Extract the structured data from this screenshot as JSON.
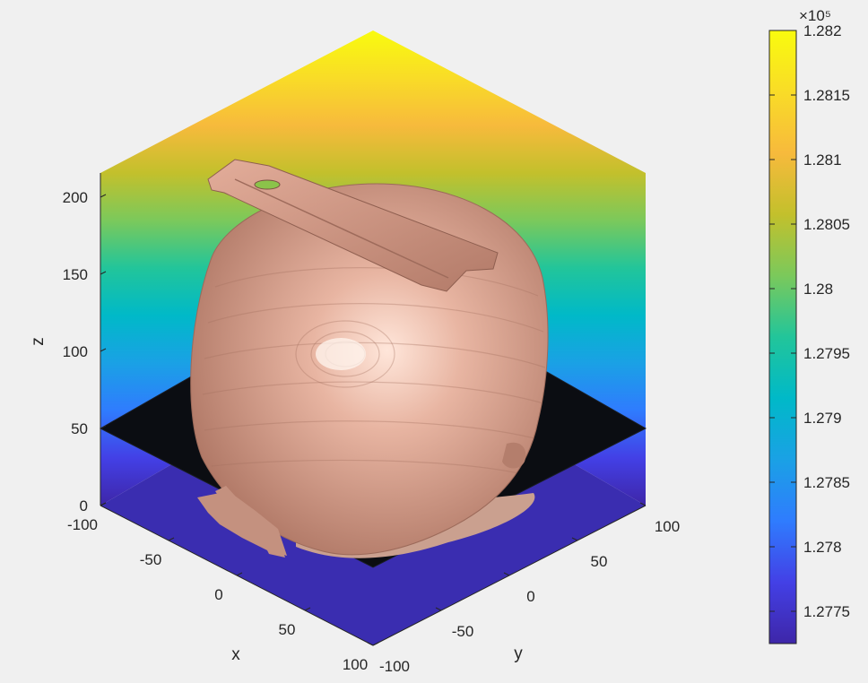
{
  "chart_data": {
    "type": "surface",
    "title": "",
    "xlabel": "x",
    "ylabel": "y",
    "zlabel": "z",
    "xlim": [
      -100,
      100
    ],
    "ylim": [
      -100,
      100
    ],
    "zlim": [
      0,
      215
    ],
    "x_ticks": [
      "-100",
      "-50",
      "0",
      "50",
      "100"
    ],
    "y_ticks": [
      "-100",
      "-50",
      "0",
      "50",
      "100"
    ],
    "z_ticks": [
      "0",
      "50",
      "100",
      "150",
      "200"
    ],
    "slice_plane_z": 50,
    "colorbar": {
      "exponent_label": "×10⁵",
      "min": 1.27725,
      "max": 1.282,
      "ticks": [
        {
          "value": 1.282,
          "label": "1.282"
        },
        {
          "value": 1.2815,
          "label": "1.2815"
        },
        {
          "value": 1.281,
          "label": "1.281"
        },
        {
          "value": 1.2805,
          "label": "1.2805"
        },
        {
          "value": 1.28,
          "label": "1.28"
        },
        {
          "value": 1.2795,
          "label": "1.2795"
        },
        {
          "value": 1.279,
          "label": "1.279"
        },
        {
          "value": 1.2785,
          "label": "1.2785"
        },
        {
          "value": 1.278,
          "label": "1.278"
        },
        {
          "value": 1.2775,
          "label": "1.2775"
        }
      ],
      "colormap": [
        "#3e26a8",
        "#4340e6",
        "#2f7cfe",
        "#1aa1e5",
        "#00b9c8",
        "#22c59a",
        "#7bc95b",
        "#c3c02c",
        "#f7ba3c",
        "#f9dc27",
        "#f9fb0e"
      ]
    },
    "object": {
      "name": "head-isosurface",
      "color": "#dca592"
    }
  }
}
